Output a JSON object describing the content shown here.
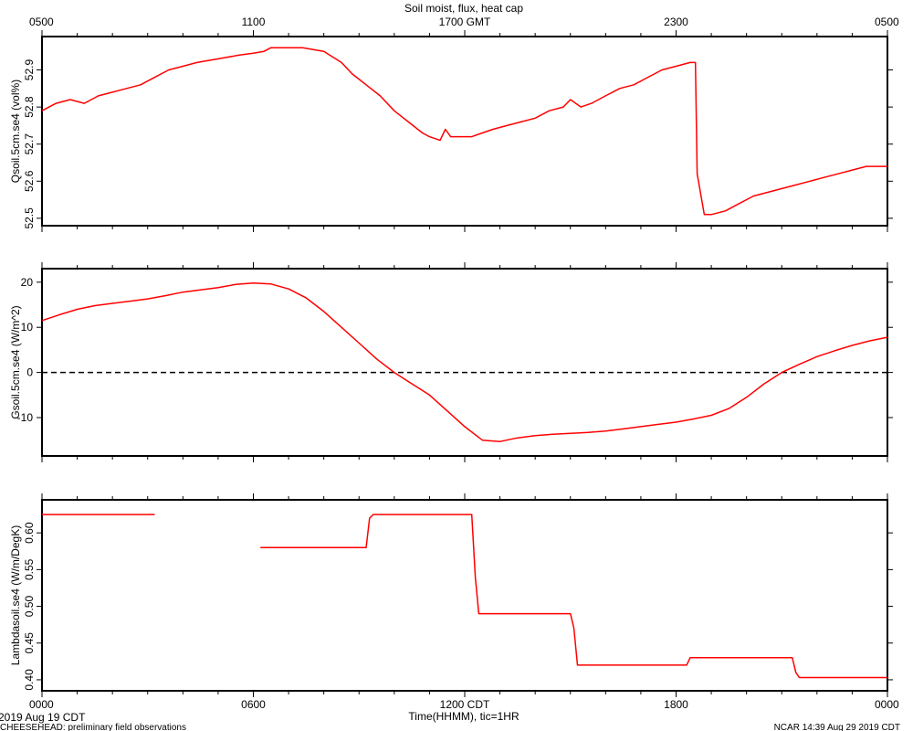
{
  "figure": {
    "title": "Soil moist, flux, heat cap",
    "xlabel": "Time(HHMM), tic=1HR",
    "date_label": "2019 Aug 19 CDT",
    "footer_left": "CHEESEHEAD: preliminary field observations",
    "footer_right": "NCAR 14:39 Aug 29 2019 CDT",
    "top_axis_labels": [
      "0500",
      "1100",
      "1700 GMT",
      "2300",
      "0500"
    ],
    "bottom_axis_labels": [
      "0000",
      "0600",
      "1200 CDT",
      "1800",
      "0000"
    ]
  },
  "chart_data": [
    {
      "type": "line",
      "ylabel": "Qsoil.5cm.se4 (vol%)",
      "xlim": [
        0,
        24
      ],
      "ylim": [
        52.48,
        52.99
      ],
      "yticks": [
        52.5,
        52.6,
        52.7,
        52.8,
        52.9
      ],
      "ytick_labels": [
        "52.5",
        "52.6",
        "52.7",
        "52.8",
        "52.9"
      ],
      "grid": false,
      "series": [
        {
          "color": "#ff0000",
          "x": [
            0,
            0.4,
            0.8,
            1.2,
            1.6,
            2.0,
            2.4,
            2.8,
            3.2,
            3.6,
            4.0,
            4.4,
            5.0,
            5.6,
            6.0,
            6.3,
            6.5,
            6.8,
            7.4,
            8.0,
            8.5,
            8.8,
            9.2,
            9.6,
            10.0,
            10.4,
            10.8,
            11.0,
            11.3,
            11.45,
            11.6,
            11.9,
            12.2,
            12.5,
            12.8,
            13.2,
            13.6,
            14.0,
            14.4,
            14.8,
            15.0,
            15.3,
            15.6,
            16.0,
            16.4,
            16.8,
            17.2,
            17.6,
            18.0,
            18.4,
            18.55,
            18.6,
            18.8,
            19.0,
            19.4,
            19.8,
            20.2,
            20.6,
            21.0,
            21.4,
            21.8,
            22.2,
            22.6,
            23.0,
            23.4,
            24.0
          ],
          "y": [
            52.79,
            52.81,
            52.82,
            52.81,
            52.83,
            52.84,
            52.85,
            52.86,
            52.88,
            52.9,
            52.91,
            52.92,
            52.93,
            52.94,
            52.945,
            52.95,
            52.96,
            52.96,
            52.96,
            52.95,
            52.92,
            52.89,
            52.86,
            52.83,
            52.79,
            52.76,
            52.73,
            52.72,
            52.71,
            52.74,
            52.72,
            52.72,
            52.72,
            52.73,
            52.74,
            52.75,
            52.76,
            52.77,
            52.79,
            52.8,
            52.82,
            52.8,
            52.81,
            52.83,
            52.85,
            52.86,
            52.88,
            52.9,
            52.91,
            52.92,
            52.92,
            52.62,
            52.51,
            52.51,
            52.52,
            52.54,
            52.56,
            52.57,
            52.58,
            52.59,
            52.6,
            52.61,
            52.62,
            52.63,
            52.64,
            52.64
          ]
        }
      ]
    },
    {
      "type": "line",
      "ylabel": "Gsoil.5cm.se4 (W/m^2)",
      "xlim": [
        0,
        24
      ],
      "ylim": [
        -18.5,
        23
      ],
      "yticks": [
        -10,
        0,
        10,
        20
      ],
      "ytick_labels": [
        "-10",
        "0",
        "10",
        "20"
      ],
      "reference_line_y": 0,
      "grid": false,
      "series": [
        {
          "color": "#ff0000",
          "x": [
            0,
            0.5,
            1,
            1.5,
            2,
            2.5,
            3,
            3.5,
            4,
            4.5,
            5,
            5.5,
            6,
            6.5,
            7,
            7.5,
            8,
            8.5,
            9,
            9.5,
            10,
            10.5,
            11,
            11.5,
            12,
            12.5,
            13,
            13.5,
            14,
            14.5,
            15,
            15.5,
            16,
            16.5,
            17,
            17.5,
            18,
            18.5,
            19,
            19.5,
            20,
            20.5,
            21,
            21.5,
            22,
            22.5,
            23,
            23.5,
            24
          ],
          "y": [
            11.5,
            12.8,
            14.0,
            14.8,
            15.3,
            15.8,
            16.3,
            17.0,
            17.8,
            18.3,
            18.8,
            19.5,
            19.8,
            19.6,
            18.5,
            16.5,
            13.5,
            10.0,
            6.5,
            3.0,
            0.0,
            -2.5,
            -5.0,
            -8.5,
            -12.0,
            -15.0,
            -15.3,
            -14.5,
            -14.0,
            -13.7,
            -13.5,
            -13.3,
            -13.0,
            -12.5,
            -12.0,
            -11.5,
            -11.0,
            -10.3,
            -9.5,
            -8.0,
            -5.5,
            -2.5,
            0.0,
            1.8,
            3.5,
            4.8,
            6.0,
            7.0,
            7.8
          ]
        }
      ]
    },
    {
      "type": "line",
      "ylabel": "Lambdasoil.se4 (W/m/DegK)",
      "xlim": [
        0,
        24
      ],
      "ylim": [
        0.385,
        0.645
      ],
      "yticks": [
        0.4,
        0.45,
        0.5,
        0.55,
        0.6
      ],
      "ytick_labels": [
        "0.40",
        "0.45",
        "0.50",
        "0.55",
        "0.60"
      ],
      "grid": false,
      "series": [
        {
          "color": "#ff0000",
          "segments": [
            {
              "x": [
                0,
                3.2
              ],
              "y": [
                0.625,
                0.625
              ]
            },
            {
              "x": [
                6.2,
                9.2,
                9.3,
                9.4,
                12.2,
                12.3,
                12.4,
                15.0,
                15.1,
                15.2,
                18.3,
                18.4,
                21.3,
                21.4,
                21.5,
                24.0
              ],
              "y": [
                0.58,
                0.58,
                0.62,
                0.625,
                0.625,
                0.54,
                0.49,
                0.49,
                0.47,
                0.42,
                0.42,
                0.43,
                0.43,
                0.41,
                0.403,
                0.403
              ]
            }
          ]
        }
      ]
    }
  ]
}
